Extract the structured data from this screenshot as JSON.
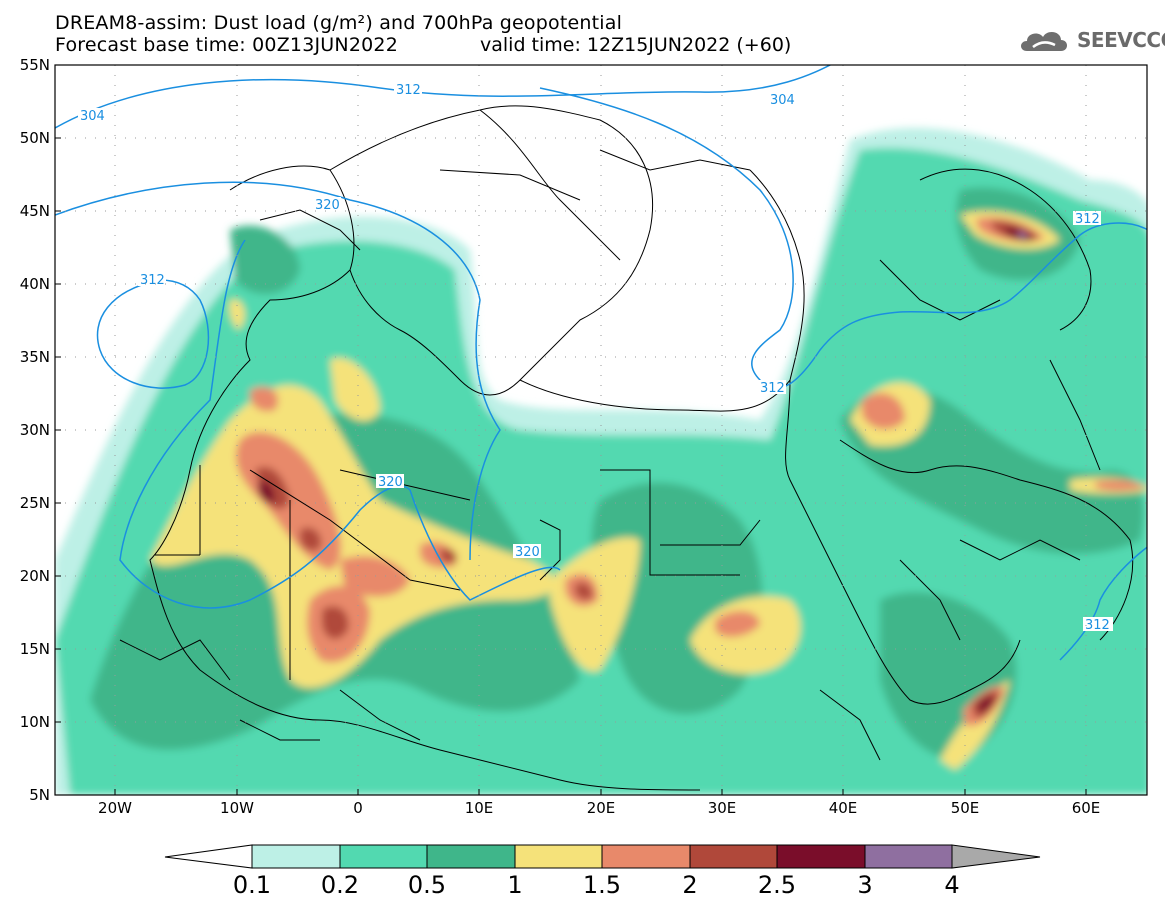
{
  "title": {
    "line1": "DREAM8-assim: Dust load (g/m²) and 700hPa geopotential",
    "line2": "Forecast base time: 00Z13JUN2022",
    "valid": "valid time: 12Z15JUN2022 (+60)"
  },
  "logo": {
    "text": "SEEVCCC",
    "icon": "cloud-icon"
  },
  "map": {
    "lon_range": [
      -25,
      65
    ],
    "lat_range": [
      5,
      55
    ],
    "lat_labels": [
      "55N",
      "50N",
      "45N",
      "40N",
      "35N",
      "30N",
      "25N",
      "20N",
      "15N",
      "10N",
      "5N"
    ],
    "lon_labels": [
      "20W",
      "10W",
      "0",
      "10E",
      "20E",
      "30E",
      "40E",
      "50E",
      "60E"
    ],
    "contour_labels": [
      "304",
      "304",
      "312",
      "312",
      "312",
      "312",
      "312",
      "320",
      "320",
      "320"
    ]
  },
  "colorbar": {
    "labels": [
      "0.1",
      "0.2",
      "0.5",
      "1",
      "1.5",
      "2",
      "2.5",
      "3",
      "4"
    ],
    "colors": [
      "#bdf0e6",
      "#52d9b0",
      "#3fb68a",
      "#f5e27a",
      "#e8896a",
      "#b0483a",
      "#7a0d2a",
      "#8f6fa0",
      "#a9a9a9"
    ]
  }
}
